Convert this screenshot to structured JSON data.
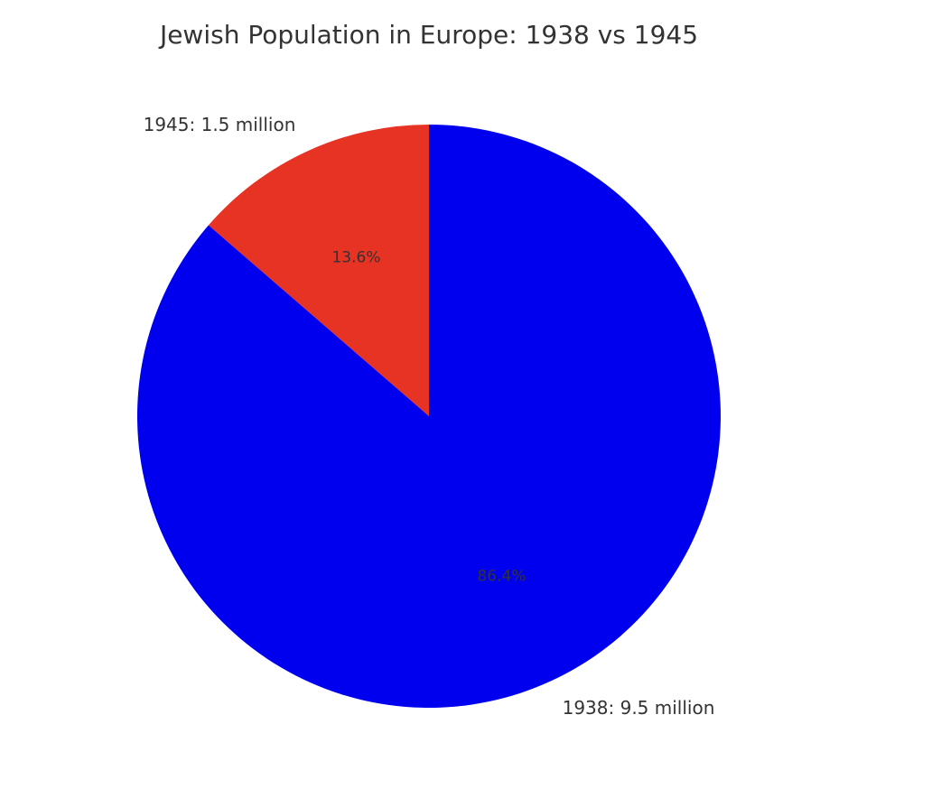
{
  "chart_data": {
    "type": "pie",
    "title": "Jewish Population in Europe: 1938 vs 1945",
    "slices": [
      {
        "label": "1938: 9.5 million",
        "value": 9.5,
        "percent_label": "86.4%",
        "color": "#0000ee"
      },
      {
        "label": "1945: 1.5 million",
        "value": 1.5,
        "percent_label": "13.6%",
        "color": "#e63323"
      }
    ],
    "start_angle_deg": 90,
    "direction": "counterclockwise"
  }
}
